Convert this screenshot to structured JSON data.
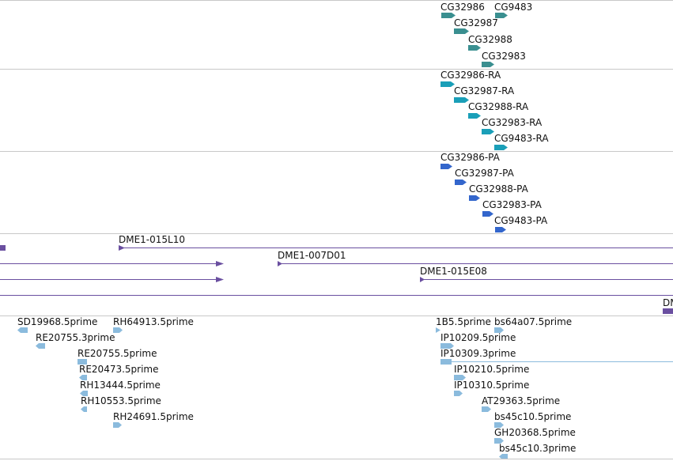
{
  "colors": {
    "gene": "#3a8f90",
    "transcript": "#1a9fb8",
    "protein": "#3366cc",
    "clone": "#6a4fa0",
    "est": "#8bbbdd",
    "separator": "#c8c8c8"
  },
  "tracks": {
    "genes": {
      "features": [
        {
          "label": "CG32986"
        },
        {
          "label": "CG9483"
        },
        {
          "label": "CG32987"
        },
        {
          "label": "CG32988"
        },
        {
          "label": "CG32983"
        }
      ]
    },
    "transcripts": {
      "features": [
        {
          "label": "CG32986-RA"
        },
        {
          "label": "CG32987-RA"
        },
        {
          "label": "CG32988-RA"
        },
        {
          "label": "CG32983-RA"
        },
        {
          "label": "CG9483-RA"
        }
      ]
    },
    "proteins": {
      "features": [
        {
          "label": "CG32986-PA"
        },
        {
          "label": "CG32987-PA"
        },
        {
          "label": "CG32988-PA"
        },
        {
          "label": "CG32983-PA"
        },
        {
          "label": "CG9483-PA"
        }
      ]
    },
    "clones": {
      "features": [
        {
          "label": "DME1-015L10"
        },
        {
          "label": "DME1-007D01"
        },
        {
          "label": "DME1-015E08"
        },
        {
          "label": "DM"
        }
      ]
    },
    "ests": {
      "features": [
        {
          "label": "SD19968.5prime"
        },
        {
          "label": "RH64913.5prime"
        },
        {
          "label": "RE20755.3prime"
        },
        {
          "label": "RE20755.5prime"
        },
        {
          "label": "RE20473.5prime"
        },
        {
          "label": "RH13444.5prime"
        },
        {
          "label": "RH10553.5prime"
        },
        {
          "label": "RH24691.5prime"
        },
        {
          "label": "1B5.5prime"
        },
        {
          "label": "bs64a07.5prime"
        },
        {
          "label": "IP10209.5prime"
        },
        {
          "label": "IP10309.3prime"
        },
        {
          "label": "IP10210.5prime"
        },
        {
          "label": "IP10310.5prime"
        },
        {
          "label": "AT29363.5prime"
        },
        {
          "label": "bs45c10.5prime"
        },
        {
          "label": "GH20368.5prime"
        },
        {
          "label": "bs45c10.3prime"
        }
      ]
    }
  }
}
